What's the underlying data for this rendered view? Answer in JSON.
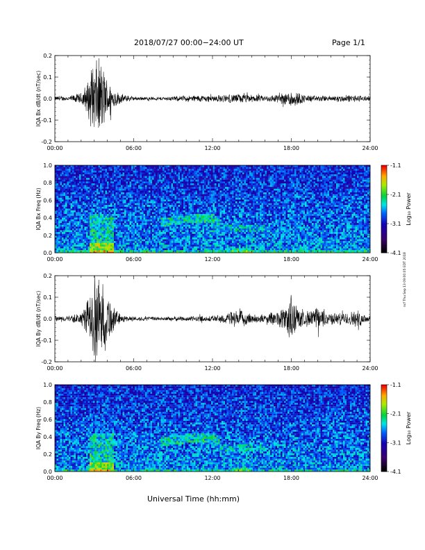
{
  "page": {
    "header": "2018/07/27  00:00−24:00 UT",
    "page_label": "Page 1/1",
    "xlabel": "Universal Time (hh:mm)",
    "side_note": "ncf Thu Sep 13 09:00:05 EDT 2018",
    "colorbar_label": "Log₁₀ Power"
  },
  "chart_data": [
    {
      "type": "line",
      "ylabel": "IQA Bx dB/dt (nT/sec)",
      "xlim": [
        0,
        24
      ],
      "ylim": [
        -0.2,
        0.2
      ],
      "x_ticks": [
        "00:00",
        "06:00",
        "12:00",
        "18:00",
        "24:00"
      ],
      "y_ticks": [
        "0.2",
        "0.1",
        "0.0",
        "-0.1",
        "-0.2"
      ],
      "series": [
        {
          "x": [
            0,
            1,
            2,
            2.5,
            3,
            3.5,
            4,
            4.5,
            5,
            6,
            7,
            8,
            9,
            10,
            11,
            12,
            13,
            14,
            15,
            16,
            17,
            17.5,
            18,
            18.5,
            19,
            20,
            21,
            22,
            23,
            24
          ],
          "amp": [
            0.012,
            0.012,
            0.03,
            0.09,
            0.2,
            0.2,
            0.1,
            0.05,
            0.025,
            0.01,
            0.009,
            0.009,
            0.012,
            0.015,
            0.018,
            0.017,
            0.02,
            0.025,
            0.02,
            0.015,
            0.025,
            0.03,
            0.05,
            0.035,
            0.02,
            0.015,
            0.015,
            0.018,
            0.018,
            0.012
          ]
        }
      ]
    },
    {
      "type": "heatmap",
      "ylabel": "IQA Bx Freq (Hz)",
      "xlim": [
        0,
        24
      ],
      "ylim": [
        0,
        1.0
      ],
      "x_ticks": [
        "00:00",
        "06:00",
        "12:00",
        "18:00",
        "24:00"
      ],
      "y_ticks": [
        "1.0",
        "0.8",
        "0.6",
        "0.4",
        "0.2",
        "0.0"
      ],
      "colorbar": {
        "label": "Log₁₀ Power",
        "ticks": [
          "-1.1",
          "-2.1",
          "-3.1",
          "-4.1"
        ],
        "range": [
          -4.1,
          -1.1
        ]
      }
    },
    {
      "type": "line",
      "ylabel": "IQA By dB/dt (nT/sec)",
      "xlim": [
        0,
        24
      ],
      "ylim": [
        -0.2,
        0.2
      ],
      "x_ticks": [
        "00:00",
        "06:00",
        "12:00",
        "18:00",
        "24:00"
      ],
      "y_ticks": [
        "0.2",
        "0.1",
        "0.0",
        "-0.1",
        "-0.2"
      ],
      "series": [
        {
          "x": [
            0,
            1,
            2,
            2.5,
            3,
            3.5,
            4,
            4.5,
            5,
            6,
            7,
            8,
            9,
            10,
            11,
            12,
            13,
            14,
            15,
            16,
            17,
            17.5,
            18,
            18.5,
            19,
            20,
            21,
            22,
            23,
            24
          ],
          "amp": [
            0.015,
            0.015,
            0.03,
            0.1,
            0.2,
            0.2,
            0.15,
            0.06,
            0.02,
            0.012,
            0.01,
            0.01,
            0.012,
            0.012,
            0.015,
            0.015,
            0.03,
            0.045,
            0.025,
            0.02,
            0.045,
            0.06,
            0.14,
            0.06,
            0.035,
            0.06,
            0.03,
            0.03,
            0.045,
            0.015
          ]
        }
      ]
    },
    {
      "type": "heatmap",
      "ylabel": "IQA By Freq (Hz)",
      "xlim": [
        0,
        24
      ],
      "ylim": [
        0,
        1.0
      ],
      "x_ticks": [
        "00:00",
        "06:00",
        "12:00",
        "18:00",
        "24:00"
      ],
      "y_ticks": [
        "1.0",
        "0.8",
        "0.6",
        "0.4",
        "0.2",
        "0.0"
      ],
      "colorbar": {
        "label": "Log₁₀ Power",
        "ticks": [
          "-1.1",
          "-2.1",
          "-3.1",
          "-4.1"
        ],
        "range": [
          -4.1,
          -1.1
        ]
      }
    }
  ]
}
